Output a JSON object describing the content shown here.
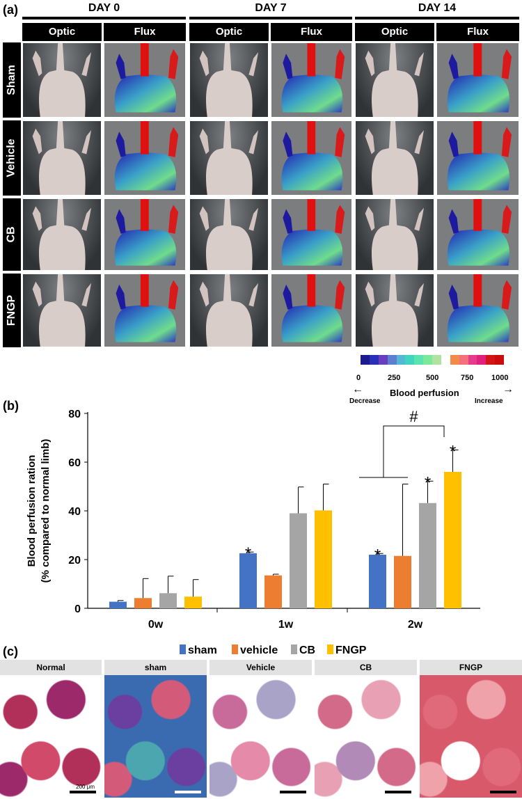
{
  "panel_a": {
    "label": "(a)",
    "days": [
      "DAY 0",
      "DAY 7",
      "DAY 14"
    ],
    "column_headers": [
      "Optic",
      "Flux",
      "Optic",
      "Flux",
      "Optic",
      "Flux"
    ],
    "rows": [
      "Sham",
      "Vehicle",
      "CB",
      "FNGP"
    ],
    "colorbar": {
      "colors": [
        "#1d1a8f",
        "#2a2fb8",
        "#6a3fbf",
        "#5d7fcf",
        "#54b7d6",
        "#3fd5c0",
        "#5be4b0",
        "#7ce89a",
        "#b0e3a0",
        "#ffffff",
        "#f28a4a",
        "#f4707a",
        "#e63a8a",
        "#e0207a",
        "#d31515",
        "#c90d0d"
      ],
      "ticks": [
        "0",
        "250",
        "500",
        "750",
        "1000"
      ],
      "left_label": "Decrease",
      "center_label": "Blood perfusion",
      "right_label": "Increase",
      "arrow_left": "←",
      "arrow_right": "→"
    }
  },
  "panel_b": {
    "label": "(b)"
  },
  "chart_data": {
    "type": "bar",
    "categories": [
      "0w",
      "1w",
      "2w"
    ],
    "series": [
      {
        "name": "sham",
        "color": "#4472c4",
        "values": [
          2.7,
          22.6,
          22.0
        ],
        "errors": [
          0.5,
          0.5,
          0.5
        ],
        "sig": [
          "",
          "*",
          "*"
        ]
      },
      {
        "name": "vehicle",
        "color": "#ed7d31",
        "values": [
          4.2,
          13.5,
          21.5
        ],
        "errors": [
          8.0,
          0.5,
          29.5
        ],
        "sig": [
          "",
          "",
          ""
        ]
      },
      {
        "name": "CB",
        "color": "#a5a5a5",
        "values": [
          6.2,
          39.0,
          43.2
        ],
        "errors": [
          7.0,
          10.8,
          9.0
        ],
        "sig": [
          "",
          "",
          "*"
        ]
      },
      {
        "name": "FNGP",
        "color": "#ffc000",
        "values": [
          4.8,
          40.2,
          56.0
        ],
        "errors": [
          7.0,
          10.8,
          9.0
        ],
        "sig": [
          "",
          "",
          "*"
        ]
      }
    ],
    "ylabel_line1": "Blood perfusion ration",
    "ylabel_line2": "(% compared to normal limb)",
    "ylim": [
      0,
      80
    ],
    "yticks": [
      "0",
      "20",
      "40",
      "60",
      "80"
    ],
    "bracket_symbol": "#",
    "star": "*"
  },
  "panel_c": {
    "label": "(c)",
    "titles": [
      "Normal",
      "sham",
      "Vehicle",
      "CB",
      "FNGP"
    ],
    "scale_text": "200 μm"
  }
}
